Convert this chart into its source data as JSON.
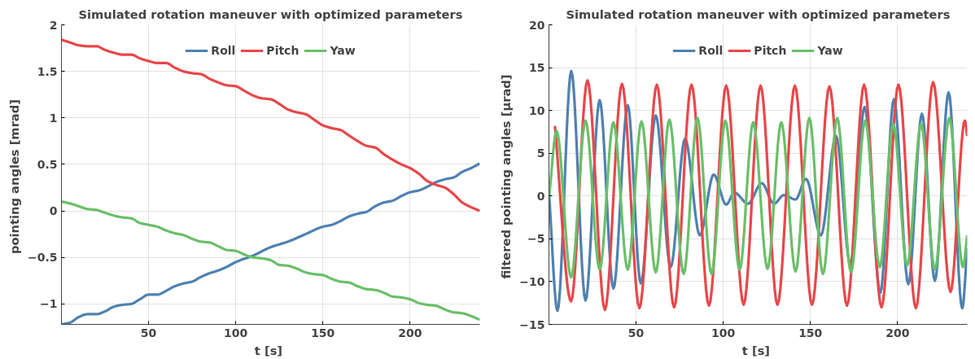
{
  "chart_data": [
    {
      "type": "line",
      "title": "Simulated rotation maneuver with optimized parameters",
      "xlabel": "t  [s]",
      "ylabel": "pointing angles  [mrad]",
      "xlim": [
        0,
        240
      ],
      "xticks": [
        50,
        100,
        150,
        200
      ],
      "ylim": [
        -1.22,
        2
      ],
      "yticks": [
        -1,
        -0.5,
        0,
        0.5,
        1,
        1.5,
        2
      ],
      "grid": true,
      "legend": "top",
      "line_style": "solid",
      "x": [
        0,
        5,
        10,
        15,
        20,
        25,
        30,
        35,
        40,
        45,
        50,
        55,
        60,
        65,
        70,
        75,
        80,
        85,
        90,
        95,
        100,
        105,
        110,
        115,
        120,
        125,
        130,
        135,
        140,
        145,
        150,
        155,
        160,
        165,
        170,
        175,
        180,
        185,
        190,
        195,
        200,
        205,
        210,
        215,
        220,
        225,
        230,
        235,
        240
      ],
      "series": [
        {
          "name": "Roll",
          "color": "#4f81b0",
          "x": [
            0,
            5,
            10,
            15,
            20,
            25,
            30,
            35,
            40,
            45,
            50,
            55,
            60,
            65,
            70,
            75,
            80,
            85,
            90,
            95,
            100,
            110,
            120,
            130,
            140,
            150,
            155,
            160,
            165,
            170,
            175,
            180,
            185,
            190,
            195,
            200,
            205,
            210,
            215,
            220,
            225,
            230,
            235,
            240
          ],
          "values": [
            -1.22,
            -1.2,
            -1.14,
            -1.11,
            -1.11,
            -1.08,
            -1.03,
            -1.01,
            -1.0,
            -0.95,
            -0.9,
            -0.9,
            -0.86,
            -0.81,
            -0.78,
            -0.76,
            -0.71,
            -0.67,
            -0.64,
            -0.6,
            -0.55,
            -0.48,
            -0.39,
            -0.33,
            -0.25,
            -0.17,
            -0.15,
            -0.11,
            -0.06,
            -0.03,
            -0.01,
            0.05,
            0.09,
            0.11,
            0.16,
            0.2,
            0.22,
            0.26,
            0.31,
            0.34,
            0.36,
            0.42,
            0.46,
            0.51
          ]
        },
        {
          "name": "Pitch",
          "color": "#e8474a",
          "values": [
            1.84,
            1.81,
            1.78,
            1.77,
            1.77,
            1.73,
            1.7,
            1.68,
            1.68,
            1.64,
            1.61,
            1.59,
            1.59,
            1.54,
            1.5,
            1.48,
            1.47,
            1.42,
            1.38,
            1.35,
            1.34,
            1.29,
            1.24,
            1.21,
            1.2,
            1.15,
            1.09,
            1.06,
            1.04,
            0.98,
            0.92,
            0.89,
            0.87,
            0.81,
            0.75,
            0.7,
            0.68,
            0.61,
            0.55,
            0.5,
            0.46,
            0.4,
            0.32,
            0.28,
            0.25,
            0.18,
            0.09,
            0.04,
            0.0
          ]
        },
        {
          "name": "Yaw",
          "color": "#6abf69",
          "values": [
            0.1,
            0.08,
            0.05,
            0.02,
            0.01,
            -0.02,
            -0.05,
            -0.07,
            -0.08,
            -0.13,
            -0.15,
            -0.17,
            -0.21,
            -0.24,
            -0.26,
            -0.3,
            -0.33,
            -0.34,
            -0.38,
            -0.42,
            -0.43,
            -0.47,
            -0.5,
            -0.51,
            -0.53,
            -0.58,
            -0.59,
            -0.62,
            -0.66,
            -0.68,
            -0.69,
            -0.73,
            -0.76,
            -0.77,
            -0.81,
            -0.84,
            -0.85,
            -0.88,
            -0.92,
            -0.93,
            -0.95,
            -0.99,
            -1.01,
            -1.02,
            -1.06,
            -1.09,
            -1.1,
            -1.13,
            -1.17
          ]
        }
      ]
    },
    {
      "type": "line",
      "title": "Simulated rotation maneuver with optimized parameters",
      "xlabel": "t  [s]",
      "ylabel": "filtered pointing angles  [μrad]",
      "xlim": [
        0,
        240
      ],
      "xticks": [
        50,
        100,
        150,
        200
      ],
      "ylim": [
        -15,
        20
      ],
      "yticks": [
        -15,
        -10,
        -5,
        0,
        5,
        10,
        15,
        20
      ],
      "grid": true,
      "legend": "top",
      "line_style": "solid",
      "series": [
        {
          "name": "Roll",
          "color": "#4f81b0",
          "x": [
            0,
            4.9,
            12.8,
            21.0,
            29.1,
            37.0,
            45.2,
            52.7,
            61.3,
            69.8,
            78.1,
            86.6,
            94.5,
            101.7,
            106.4,
            114.2,
            122.1,
            129.1,
            134.8,
            141.5,
            147.5,
            156.0,
            164.7,
            172.9,
            181.1,
            190.1,
            197.9,
            206.2,
            214.0,
            221.4,
            229.3,
            237.1,
            240
          ],
          "values": [
            0.4,
            -13.4,
            14.6,
            -12.2,
            11.2,
            -10.8,
            10.6,
            -10.2,
            9.4,
            -8.3,
            6.7,
            -4.6,
            2.5,
            -1.0,
            0.4,
            -0.9,
            1.5,
            -0.9,
            0.1,
            -0.4,
            2.0,
            -4.6,
            7.0,
            -8.0,
            10.4,
            -11.3,
            11.3,
            -10.3,
            9.6,
            -9.9,
            12.1,
            -13.1,
            -6.1
          ]
        },
        {
          "name": "Pitch",
          "color": "#e8474a",
          "x": [
            3.4,
            12.7,
            22.1,
            32.1,
            41.9,
            51.9,
            61.9,
            71.8,
            81.8,
            91.8,
            101.7,
            111.7,
            121.4,
            131.1,
            141.1,
            150.9,
            160.9,
            171.0,
            180.8,
            190.8,
            200.5,
            210.5,
            220.4,
            230.4,
            238.6,
            240
          ],
          "values": [
            8.2,
            -12.3,
            13.5,
            -13.3,
            13.1,
            -13.1,
            13.0,
            -13.0,
            13.0,
            -12.8,
            12.9,
            -12.7,
            12.9,
            -12.7,
            12.9,
            -12.7,
            12.8,
            -12.8,
            13.0,
            -13.0,
            13.0,
            -13.1,
            13.3,
            -11.2,
            8.8,
            7.0
          ]
        },
        {
          "name": "Yaw",
          "color": "#6abf69",
          "x": [
            0,
            4.4,
            12.7,
            21.0,
            29.1,
            37.0,
            45.2,
            53.1,
            61.3,
            69.1,
            77.3,
            85.2,
            93.3,
            101.2,
            109.4,
            117.2,
            125.4,
            133.3,
            141.5,
            149.4,
            157.2,
            165.4,
            173.3,
            181.4,
            189.8,
            197.5,
            205.5,
            213.5,
            221.4,
            229.7,
            237.5,
            240
          ],
          "values": [
            -0.3,
            7.6,
            -9.5,
            8.8,
            -8.6,
            8.6,
            -8.6,
            8.7,
            -8.9,
            8.9,
            -9.1,
            9.1,
            -9.1,
            8.8,
            -8.6,
            8.6,
            -8.5,
            8.6,
            -8.8,
            9.1,
            -9.1,
            9.1,
            -8.9,
            8.8,
            -8.3,
            8.4,
            -8.1,
            8.4,
            -8.6,
            9.1,
            -8.3,
            -4.6
          ]
        }
      ]
    }
  ]
}
